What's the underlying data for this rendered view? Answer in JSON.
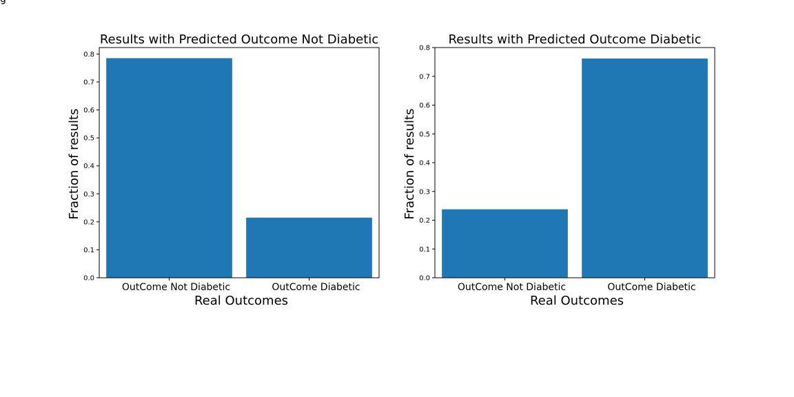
{
  "figure_corner_text": "g",
  "bar_color": "#1f77b4",
  "chart_data": [
    {
      "type": "bar",
      "title": "Results with Predicted Outcome Not Diabetic",
      "xlabel": "Real Outcomes",
      "ylabel": "Fraction of results",
      "categories": [
        "OutCome Not Diabetic",
        "OutCome Diabetic"
      ],
      "values": [
        0.785,
        0.215
      ],
      "ylim": [
        0,
        0.823
      ],
      "yticks": [
        "0.0",
        "0.1",
        "0.2",
        "0.3",
        "0.4",
        "0.5",
        "0.6",
        "0.7",
        "0.8"
      ],
      "grid": false,
      "legend": "none"
    },
    {
      "type": "bar",
      "title": "Results with Predicted Outcome Diabetic",
      "xlabel": "Real Outcomes",
      "ylabel": "Fraction of results",
      "categories": [
        "OutCome Not Diabetic",
        "OutCome Diabetic"
      ],
      "values": [
        0.238,
        0.762
      ],
      "ylim": [
        0,
        0.8
      ],
      "yticks": [
        "0.0",
        "0.1",
        "0.2",
        "0.3",
        "0.4",
        "0.5",
        "0.6",
        "0.7",
        "0.8"
      ],
      "grid": false,
      "legend": "none"
    }
  ]
}
